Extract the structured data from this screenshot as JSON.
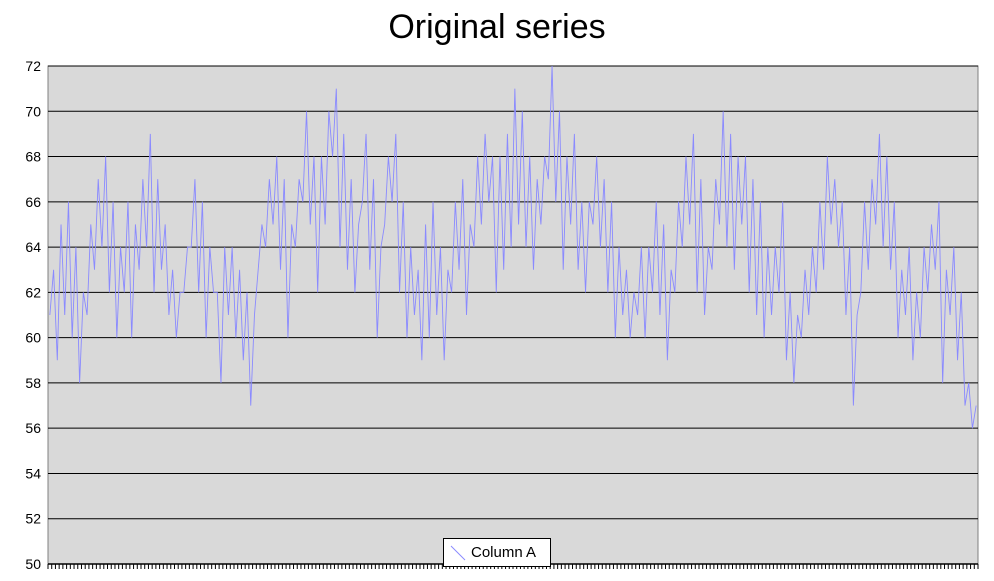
{
  "chart_data": {
    "type": "line",
    "title": "Original series",
    "xlabel": "",
    "ylabel": "",
    "ylim": [
      50,
      72
    ],
    "yticks": [
      50,
      52,
      54,
      56,
      58,
      60,
      62,
      64,
      66,
      68,
      70,
      72
    ],
    "grid": true,
    "legend_position": "bottom-center",
    "background_color": "#d9d9d9",
    "series": [
      {
        "name": "Column A",
        "color": "#8a8aff",
        "values": [
          61,
          63,
          59,
          65,
          61,
          66,
          60,
          64,
          58,
          62,
          61,
          65,
          63,
          67,
          64,
          68,
          62,
          66,
          60,
          64,
          62,
          66,
          60,
          65,
          63,
          67,
          64,
          69,
          62,
          67,
          63,
          65,
          61,
          63,
          60,
          62,
          62,
          64,
          64,
          67,
          62,
          66,
          60,
          64,
          62,
          62,
          58,
          64,
          61,
          64,
          60,
          63,
          59,
          62,
          57,
          61,
          63,
          65,
          64,
          67,
          65,
          68,
          63,
          67,
          60,
          65,
          64,
          67,
          66,
          70,
          65,
          68,
          62,
          68,
          65,
          70,
          68,
          71,
          64,
          69,
          63,
          67,
          62,
          65,
          66,
          69,
          63,
          67,
          60,
          64,
          65,
          68,
          66,
          69,
          62,
          66,
          60,
          64,
          61,
          63,
          59,
          65,
          60,
          66,
          61,
          64,
          59,
          63,
          62,
          66,
          63,
          67,
          61,
          65,
          64,
          68,
          65,
          69,
          66,
          68,
          62,
          68,
          63,
          69,
          64,
          71,
          65,
          70,
          64,
          68,
          63,
          67,
          65,
          68,
          67,
          72,
          66,
          70,
          63,
          68,
          65,
          69,
          63,
          66,
          62,
          66,
          65,
          68,
          64,
          67,
          62,
          66,
          60,
          64,
          61,
          63,
          60,
          62,
          61,
          64,
          60,
          64,
          62,
          66,
          61,
          65,
          59,
          63,
          62,
          66,
          64,
          68,
          65,
          69,
          62,
          67,
          61,
          64,
          63,
          67,
          65,
          70,
          64,
          69,
          63,
          68,
          65,
          68,
          62,
          67,
          61,
          66,
          60,
          64,
          61,
          64,
          62,
          66,
          59,
          62,
          58,
          61,
          60,
          63,
          61,
          64,
          62,
          66,
          63,
          68,
          65,
          67,
          64,
          66,
          61,
          64,
          57,
          61,
          62,
          66,
          63,
          67,
          65,
          69,
          64,
          68,
          63,
          66,
          60,
          63,
          61,
          64,
          59,
          62,
          60,
          64,
          62,
          65,
          63,
          66,
          58,
          63,
          61,
          64,
          59,
          62,
          57,
          58,
          56,
          57
        ]
      }
    ]
  }
}
